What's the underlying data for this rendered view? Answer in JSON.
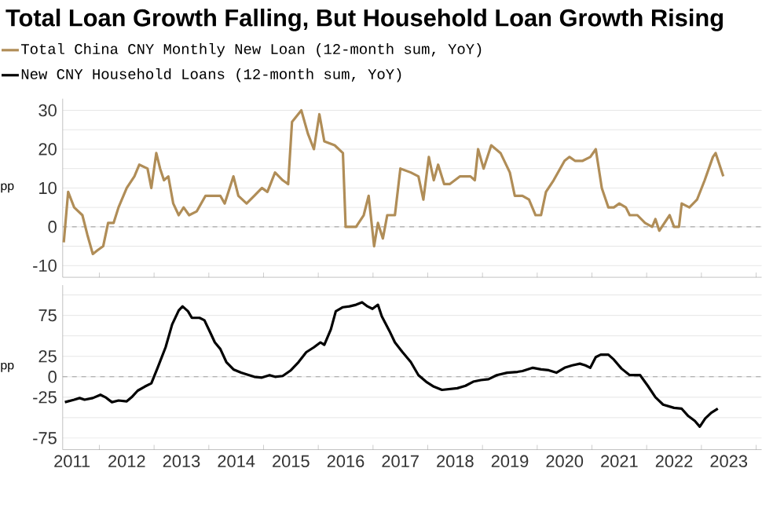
{
  "chart_data": [
    {
      "type": "line",
      "title": "Total Loan Growth Falling, But Household Loan Growth Rising",
      "ylabel": "pp",
      "legend": "top",
      "grid": "y",
      "tick_labels": "y",
      "line_style": "solid",
      "marker": "none",
      "xlim": [
        2011.33,
        2024.1
      ],
      "ylim": [
        -13,
        33
      ],
      "xticks": [
        {
          "value": 2012,
          "label": null
        },
        {
          "value": 2013,
          "label": null
        },
        {
          "value": 2014,
          "label": null
        },
        {
          "value": 2015,
          "label": null
        },
        {
          "value": 2016,
          "label": null
        },
        {
          "value": 2017,
          "label": null
        },
        {
          "value": 2018,
          "label": null
        },
        {
          "value": 2019,
          "label": null
        },
        {
          "value": 2020,
          "label": null
        },
        {
          "value": 2021,
          "label": null
        },
        {
          "value": 2022,
          "label": null
        },
        {
          "value": 2023,
          "label": null
        },
        {
          "value": 2024,
          "label": null
        }
      ],
      "yticks": [
        -10,
        {
          "value": -5,
          "label": null
        },
        0,
        {
          "value": 5,
          "label": null
        },
        10,
        {
          "value": 15,
          "label": null
        },
        20,
        {
          "value": 25,
          "label": null
        },
        30
      ],
      "ref_lines": [
        {
          "axis": "y",
          "value": 0,
          "color": "#999999",
          "line_style": "dashed"
        }
      ],
      "series": [
        {
          "name": "Total China CNY Monthly New Loan (12-month sum, YoY)",
          "color": "#b08d57",
          "x": [
            2011.35,
            2011.43,
            2011.54,
            2011.69,
            2011.78,
            2011.88,
            2011.97,
            2012.07,
            2012.16,
            2012.26,
            2012.35,
            2012.5,
            2012.64,
            2012.73,
            2012.88,
            2012.95,
            2013.04,
            2013.11,
            2013.18,
            2013.26,
            2013.35,
            2013.45,
            2013.54,
            2013.64,
            2013.78,
            2013.94,
            2014.07,
            2014.21,
            2014.29,
            2014.45,
            2014.54,
            2014.69,
            2014.83,
            2014.97,
            2015.07,
            2015.21,
            2015.35,
            2015.45,
            2015.52,
            2015.69,
            2015.81,
            2015.92,
            2016.02,
            2016.11,
            2016.3,
            2016.45,
            2016.5,
            2016.69,
            2016.83,
            2016.92,
            2017.02,
            2017.09,
            2017.18,
            2017.26,
            2017.4,
            2017.5,
            2017.69,
            2017.83,
            2017.92,
            2018.02,
            2018.11,
            2018.19,
            2018.3,
            2018.4,
            2018.59,
            2018.78,
            2018.86,
            2018.92,
            2019.02,
            2019.16,
            2019.33,
            2019.5,
            2019.59,
            2019.73,
            2019.85,
            2019.97,
            2020.07,
            2020.16,
            2020.3,
            2020.5,
            2020.59,
            2020.69,
            2020.83,
            2020.97,
            2021.07,
            2021.18,
            2021.3,
            2021.4,
            2021.5,
            2021.62,
            2021.69,
            2021.83,
            2021.97,
            2022.1,
            2022.16,
            2022.23,
            2022.42,
            2022.5,
            2022.59,
            2022.64,
            2022.78,
            2022.92,
            2023.06,
            2023.21,
            2023.26,
            2023.33,
            2023.4
          ],
          "values": [
            -4,
            9,
            5,
            3,
            -2,
            -7,
            -6,
            -5,
            1,
            1,
            5,
            10,
            13,
            16,
            15,
            10,
            19,
            15,
            12,
            13,
            6,
            3,
            5,
            3,
            4,
            8,
            8,
            8,
            6,
            13,
            8,
            6,
            8,
            10,
            9,
            14,
            12,
            11,
            27,
            30,
            24,
            20,
            29,
            22,
            21,
            19,
            0,
            0,
            3,
            8,
            -5,
            1,
            -3,
            3,
            3,
            15,
            14,
            13,
            7,
            18,
            12,
            16,
            11,
            11,
            13,
            13,
            12,
            20,
            15,
            21,
            19,
            14,
            8,
            8,
            7,
            3,
            3,
            9,
            12,
            17,
            18,
            17,
            17,
            18,
            20,
            10,
            5,
            5,
            6,
            5,
            3,
            3,
            1,
            0,
            2,
            -1,
            3,
            0,
            0,
            6,
            5,
            7,
            12,
            18,
            19,
            16,
            13
          ]
        }
      ]
    },
    {
      "type": "line",
      "ylabel": "pp",
      "legend": "top",
      "grid": "y",
      "line_style": "solid",
      "marker": "none",
      "xlim": [
        2011.33,
        2024.1
      ],
      "ylim": [
        -89,
        112
      ],
      "xticks": [
        {
          "value": 2011.5,
          "label": "2011"
        },
        {
          "value": 2012,
          "label": null
        },
        {
          "value": 2012.5,
          "label": "2012"
        },
        {
          "value": 2013,
          "label": null
        },
        {
          "value": 2013.5,
          "label": "2013"
        },
        {
          "value": 2014,
          "label": null
        },
        {
          "value": 2014.5,
          "label": "2014"
        },
        {
          "value": 2015,
          "label": null
        },
        {
          "value": 2015.5,
          "label": "2015"
        },
        {
          "value": 2016,
          "label": null
        },
        {
          "value": 2016.5,
          "label": "2016"
        },
        {
          "value": 2017,
          "label": null
        },
        {
          "value": 2017.5,
          "label": "2017"
        },
        {
          "value": 2018,
          "label": null
        },
        {
          "value": 2018.5,
          "label": "2018"
        },
        {
          "value": 2019,
          "label": null
        },
        {
          "value": 2019.5,
          "label": "2019"
        },
        {
          "value": 2020,
          "label": null
        },
        {
          "value": 2020.5,
          "label": "2020"
        },
        {
          "value": 2021,
          "label": null
        },
        {
          "value": 2021.5,
          "label": "2021"
        },
        {
          "value": 2022,
          "label": null
        },
        {
          "value": 2022.5,
          "label": "2022"
        },
        {
          "value": 2023,
          "label": null
        },
        {
          "value": 2023.5,
          "label": "2023"
        },
        {
          "value": 2024,
          "label": null
        }
      ],
      "yticks": [
        -75,
        {
          "value": -50,
          "label": null
        },
        -25,
        0,
        25,
        {
          "value": 50,
          "label": null
        },
        75,
        {
          "value": 100,
          "label": null
        }
      ],
      "ref_lines": [
        {
          "axis": "y",
          "value": 0,
          "color": "#999999",
          "line_style": "dashed"
        }
      ],
      "series": [
        {
          "name": "New CNY Household Loans (12-month sum, YoY)",
          "color": "#000000",
          "x": [
            2011.37,
            2011.54,
            2011.64,
            2011.73,
            2011.88,
            2012.02,
            2012.11,
            2012.23,
            2012.35,
            2012.5,
            2012.59,
            2012.7,
            2012.83,
            2012.95,
            2013.07,
            2013.21,
            2013.33,
            2013.45,
            2013.52,
            2013.62,
            2013.69,
            2013.83,
            2013.92,
            2014.02,
            2014.11,
            2014.21,
            2014.32,
            2014.45,
            2014.59,
            2014.69,
            2014.83,
            2014.97,
            2015.11,
            2015.21,
            2015.35,
            2015.5,
            2015.64,
            2015.78,
            2015.92,
            2016.04,
            2016.11,
            2016.23,
            2016.32,
            2016.45,
            2016.57,
            2016.69,
            2016.8,
            2016.9,
            2016.99,
            2017.09,
            2017.16,
            2017.3,
            2017.4,
            2017.54,
            2017.69,
            2017.83,
            2017.97,
            2018.11,
            2018.26,
            2018.4,
            2018.54,
            2018.69,
            2018.83,
            2018.97,
            2019.11,
            2019.26,
            2019.45,
            2019.64,
            2019.73,
            2019.92,
            2020.07,
            2020.21,
            2020.35,
            2020.5,
            2020.64,
            2020.78,
            2020.88,
            2020.97,
            2021.07,
            2021.16,
            2021.3,
            2021.4,
            2021.54,
            2021.69,
            2021.88,
            2022.02,
            2022.16,
            2022.3,
            2022.5,
            2022.64,
            2022.76,
            2022.88,
            2022.97,
            2023.07,
            2023.18,
            2023.3
          ],
          "values": [
            -31,
            -28,
            -26,
            -28,
            -26,
            -22,
            -25,
            -31,
            -29,
            -30,
            -25,
            -17,
            -12,
            -8,
            12,
            36,
            64,
            81,
            86,
            80,
            72,
            72,
            69,
            55,
            42,
            34,
            18,
            9,
            5,
            3,
            0,
            -1,
            2,
            0,
            1,
            8,
            18,
            30,
            36,
            42,
            39,
            58,
            80,
            85,
            86,
            88,
            91,
            86,
            83,
            88,
            74,
            56,
            42,
            30,
            18,
            2,
            -6,
            -12,
            -16,
            -15,
            -14,
            -11,
            -6,
            -4,
            -3,
            2,
            5,
            6,
            7,
            11,
            9,
            8,
            5,
            11,
            14,
            16,
            14,
            11,
            24,
            27,
            27,
            21,
            10,
            2,
            2,
            -11,
            -25,
            -34,
            -38,
            -39,
            -48,
            -54,
            -61,
            -51,
            -44,
            -39
          ]
        }
      ]
    }
  ]
}
